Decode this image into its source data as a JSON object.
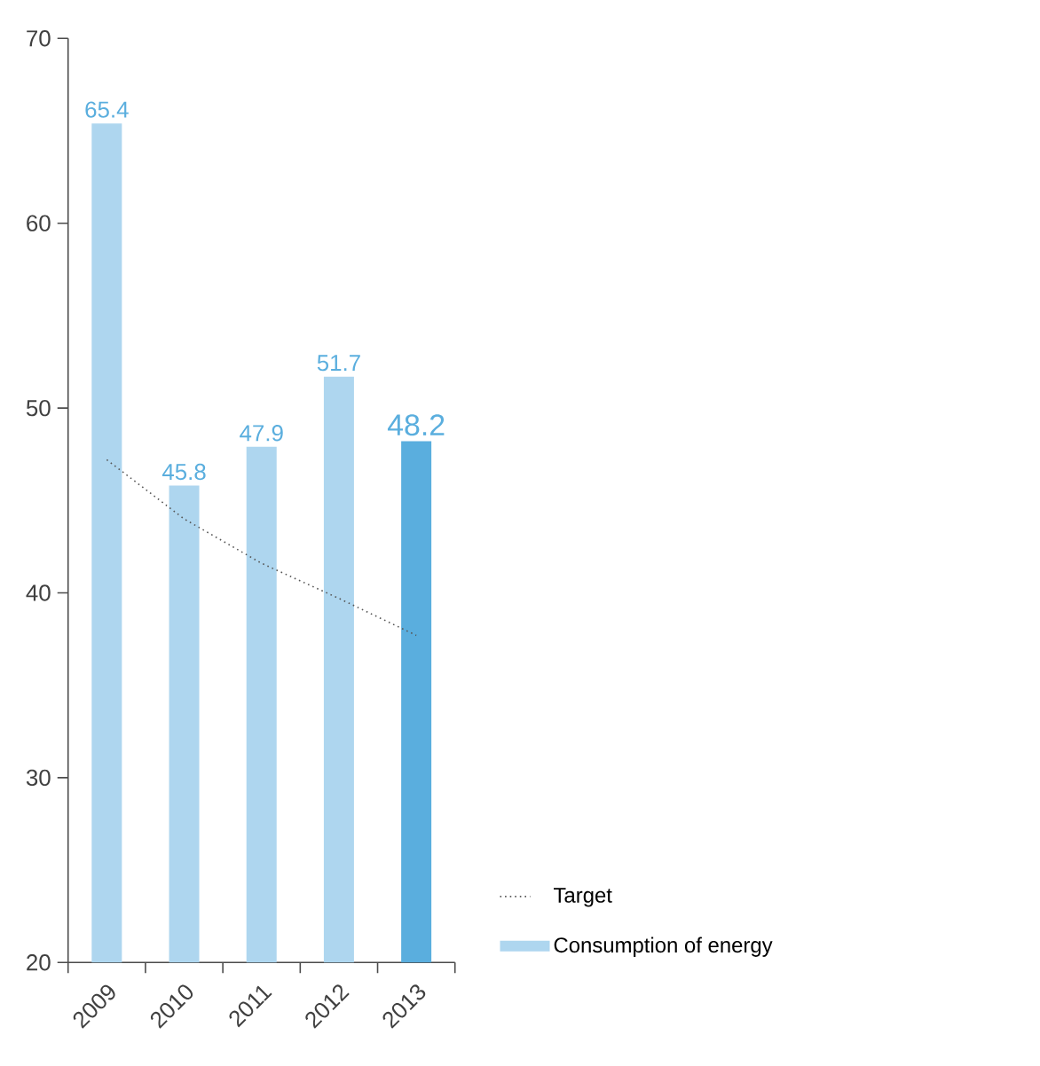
{
  "chart_data": {
    "type": "bar",
    "categories": [
      "2009",
      "2010",
      "2011",
      "2012",
      "2013"
    ],
    "series": [
      {
        "name": "Consumption of energy",
        "colors": [
          "#aed6ef",
          "#aed6ef",
          "#aed6ef",
          "#aed6ef",
          "#5aaede"
        ],
        "values": [
          65.4,
          45.8,
          47.9,
          51.7,
          48.2
        ],
        "value_labels": [
          "65.4",
          "45.8",
          "47.9",
          "51.7",
          "48.2"
        ]
      },
      {
        "name": "Target",
        "type": "line",
        "color": "#555555",
        "line_style": "dotted",
        "values": [
          47.2,
          44.0,
          41.6,
          39.7,
          37.7
        ]
      }
    ],
    "ylim": [
      20,
      70
    ],
    "yticks": [
      20,
      30,
      40,
      50,
      60,
      70
    ],
    "legend": "bottom right"
  }
}
